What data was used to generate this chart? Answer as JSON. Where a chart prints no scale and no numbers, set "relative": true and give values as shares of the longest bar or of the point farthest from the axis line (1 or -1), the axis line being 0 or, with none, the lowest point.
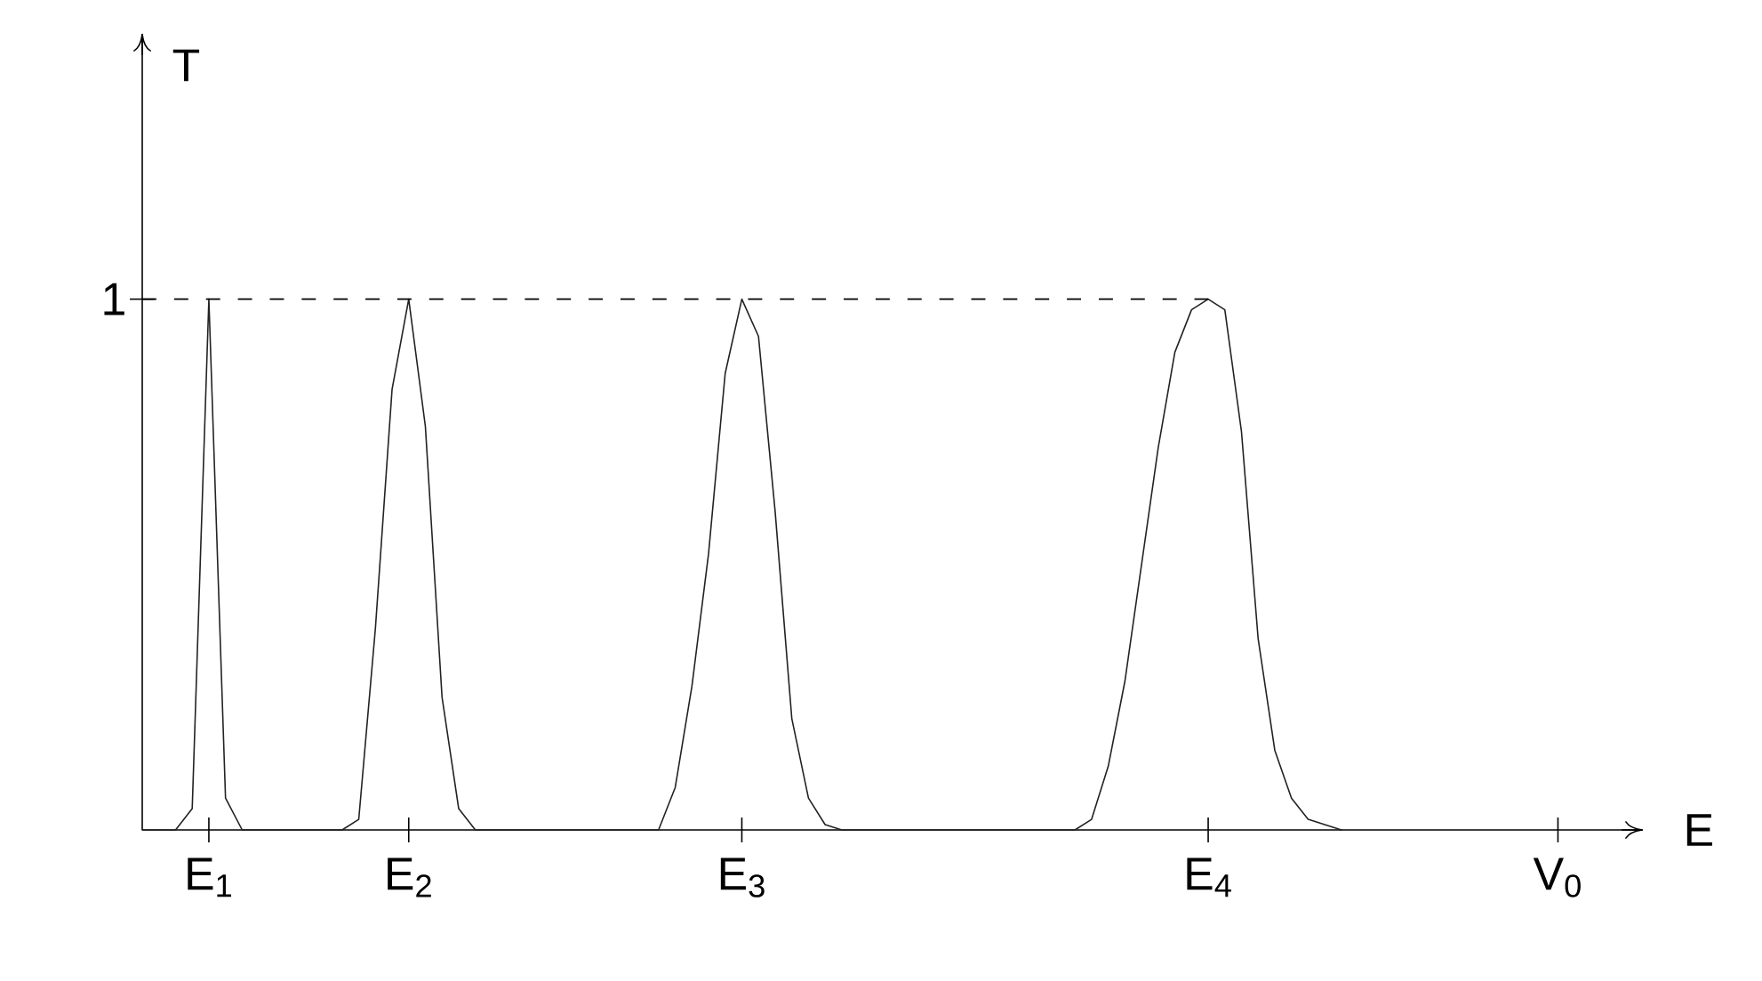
{
  "chart_data": {
    "type": "line",
    "relative": true,
    "xlabel": "E",
    "ylabel": "T",
    "color": "#222222",
    "line_style": "solid",
    "categories": [
      null,
      null,
      null,
      null,
      "E$_{1}$",
      null,
      null,
      null,
      null,
      null,
      null,
      null,
      null,
      null,
      null,
      null,
      "E$_{2}$",
      null,
      null,
      null,
      null,
      null,
      null,
      null,
      null,
      null,
      null,
      null,
      null,
      null,
      null,
      null,
      null,
      null,
      null,
      null,
      "E$_{3}$",
      null,
      null,
      null,
      null,
      null,
      null,
      null,
      null,
      null,
      null,
      null,
      null,
      null,
      null,
      null,
      null,
      null,
      null,
      null,
      null,
      null,
      null,
      null,
      null,
      null,
      null,
      null,
      "E$_{4}$",
      null,
      null,
      null,
      null,
      null,
      null,
      null,
      null,
      null,
      null,
      null,
      null,
      null,
      null,
      null,
      null,
      null,
      null,
      null,
      null,
      "V$_{0}$"
    ],
    "values": [
      0,
      0,
      0,
      0.04,
      1,
      0.06,
      0,
      0,
      0,
      0,
      0,
      0,
      0,
      0.02,
      0.38,
      0.83,
      1,
      0.76,
      0.25,
      0.04,
      0,
      0,
      0,
      0,
      0,
      0,
      0,
      0,
      0,
      0,
      0,
      0,
      0.08,
      0.27,
      0.52,
      0.86,
      1,
      0.93,
      0.6,
      0.21,
      0.06,
      0.01,
      0,
      0,
      0,
      0,
      0,
      0,
      0,
      0,
      0,
      0,
      0,
      0,
      0,
      0,
      0,
      0.02,
      0.12,
      0.28,
      0.5,
      0.72,
      0.9,
      0.98,
      1.0,
      0.98,
      0.75,
      0.36,
      0.15,
      0.06,
      0.02,
      0.01,
      0,
      null,
      null,
      null,
      null,
      null,
      null,
      null,
      null,
      null,
      null,
      null,
      null,
      null
    ],
    "ref_lines": [
      {
        "axis": "y",
        "value": 1,
        "label": "1",
        "line_style": "dashed"
      }
    ]
  }
}
